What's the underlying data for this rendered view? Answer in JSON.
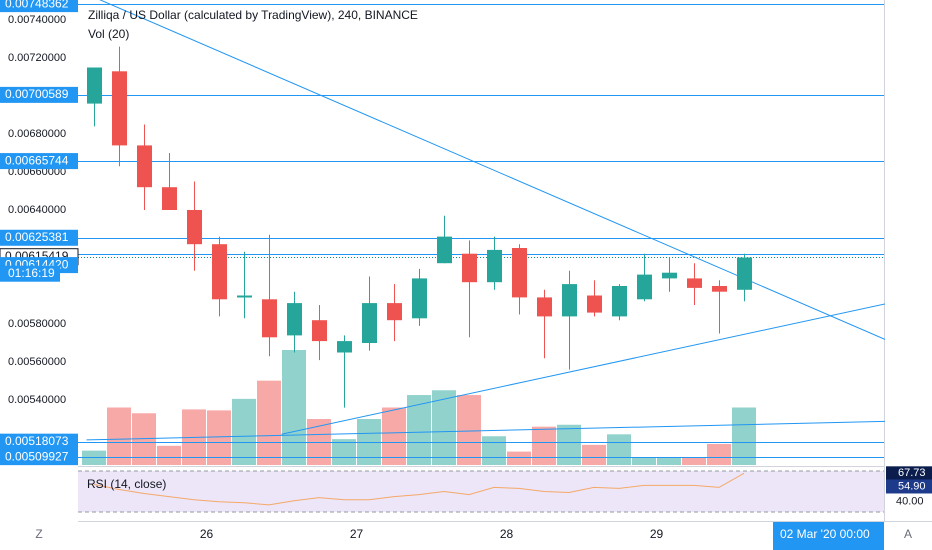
{
  "legend": {
    "title": "Zilliqa / US Dollar (calculated by TradingView), 240, BINANCE",
    "volume": "Vol (20)",
    "rsi": "RSI (14, close)"
  },
  "colors": {
    "up": "#26a69a",
    "down": "#ef5350",
    "line": "#2196f3",
    "label_bg": "#2196f3",
    "last_price": "#0b8f84",
    "rsi_line": "#f5a868",
    "rsi_band": "#ece6f8"
  },
  "price_axis": {
    "ticks": [
      "0.00740000",
      "0.00720000",
      "0.00680000",
      "0.00660000",
      "0.00640000",
      "0.00580000",
      "0.00560000",
      "0.00540000"
    ],
    "tick_values": [
      0.0074,
      0.0072,
      0.0068,
      0.0066,
      0.0064,
      0.0058,
      0.0056,
      0.0054
    ],
    "highlighted_labels": [
      {
        "text": "0.00748362",
        "value": 0.00748362
      },
      {
        "text": "0.00700589",
        "value": 0.00700589
      },
      {
        "text": "0.00665744",
        "value": 0.00665744
      },
      {
        "text": "0.00625381",
        "value": 0.00625381
      },
      {
        "text": "0.00615419",
        "value": 0.00615419
      },
      {
        "text": "0.00614420",
        "value": 0.00611
      },
      {
        "text": "0.00518073",
        "value": 0.00518073
      },
      {
        "text": "0.00509927",
        "value": 0.00509927
      }
    ],
    "countdown": "01:16:19"
  },
  "rsi_axis": {
    "labels": [
      {
        "text": "67.73",
        "value": 67.73,
        "box": true
      },
      {
        "text": "54.90",
        "value": 54.9,
        "box": true
      },
      {
        "text": "40.00",
        "value": 40,
        "box": false
      }
    ],
    "range": [
      30,
      70
    ],
    "band": [
      30,
      70
    ]
  },
  "time_axis": {
    "labels": [
      {
        "text": "26",
        "bar": 4.5
      },
      {
        "text": "27",
        "bar": 10.5
      },
      {
        "text": "28",
        "bar": 16.5
      },
      {
        "text": "29",
        "bar": 22.5
      }
    ],
    "cursor_label": "02 Mar '20   00:00",
    "z_button": "Z",
    "a_button": "A"
  },
  "chart_data": {
    "type": "candlestick",
    "price_range": [
      0.0051,
      0.0075
    ],
    "bars": [
      {
        "o": 0.00696,
        "h": 0.00715,
        "l": 0.00684,
        "c": 0.00715,
        "v": 0.15
      },
      {
        "o": 0.00713,
        "h": 0.00726,
        "l": 0.00663,
        "c": 0.00674,
        "v": 0.6
      },
      {
        "o": 0.00674,
        "h": 0.00685,
        "l": 0.0064,
        "c": 0.00652,
        "v": 0.54
      },
      {
        "o": 0.00652,
        "h": 0.0067,
        "l": 0.0064,
        "c": 0.0064,
        "v": 0.2
      },
      {
        "o": 0.0064,
        "h": 0.00655,
        "l": 0.00608,
        "c": 0.00622,
        "v": 0.58
      },
      {
        "o": 0.00622,
        "h": 0.00626,
        "l": 0.00584,
        "c": 0.00593,
        "v": 0.57
      },
      {
        "o": 0.00594,
        "h": 0.00618,
        "l": 0.00583,
        "c": 0.00595,
        "v": 0.69
      },
      {
        "o": 0.00593,
        "h": 0.00627,
        "l": 0.00563,
        "c": 0.00573,
        "v": 0.88
      },
      {
        "o": 0.00574,
        "h": 0.00597,
        "l": 0.00565,
        "c": 0.00591,
        "v": 1.2
      },
      {
        "o": 0.00582,
        "h": 0.0059,
        "l": 0.00561,
        "c": 0.00571,
        "v": 0.48
      },
      {
        "o": 0.00565,
        "h": 0.00574,
        "l": 0.00536,
        "c": 0.00571,
        "v": 0.27
      },
      {
        "o": 0.0057,
        "h": 0.00605,
        "l": 0.00566,
        "c": 0.00591,
        "v": 0.48
      },
      {
        "o": 0.00591,
        "h": 0.00601,
        "l": 0.00571,
        "c": 0.00582,
        "v": 0.6
      },
      {
        "o": 0.00583,
        "h": 0.00609,
        "l": 0.00579,
        "c": 0.00604,
        "v": 0.73
      },
      {
        "o": 0.00612,
        "h": 0.00637,
        "l": 0.00612,
        "c": 0.00626,
        "v": 0.78
      },
      {
        "o": 0.00617,
        "h": 0.00624,
        "l": 0.00573,
        "c": 0.00602,
        "v": 0.73
      },
      {
        "o": 0.00602,
        "h": 0.00626,
        "l": 0.00598,
        "c": 0.00619,
        "v": 0.3
      },
      {
        "o": 0.0062,
        "h": 0.00622,
        "l": 0.00585,
        "c": 0.00594,
        "v": 0.14
      },
      {
        "o": 0.00594,
        "h": 0.00598,
        "l": 0.00562,
        "c": 0.00584,
        "v": 0.4
      },
      {
        "o": 0.00584,
        "h": 0.00608,
        "l": 0.00556,
        "c": 0.00601,
        "v": 0.42
      },
      {
        "o": 0.00595,
        "h": 0.00603,
        "l": 0.00584,
        "c": 0.00586,
        "v": 0.21
      },
      {
        "o": 0.00584,
        "h": 0.00601,
        "l": 0.00582,
        "c": 0.006,
        "v": 0.32
      },
      {
        "o": 0.00593,
        "h": 0.00617,
        "l": 0.00592,
        "c": 0.00606,
        "v": 0.08
      },
      {
        "o": 0.00604,
        "h": 0.00615,
        "l": 0.00597,
        "c": 0.00607,
        "v": 0.08
      },
      {
        "o": 0.00604,
        "h": 0.00612,
        "l": 0.0059,
        "c": 0.00599,
        "v": 0.08
      },
      {
        "o": 0.006,
        "h": 0.00603,
        "l": 0.00575,
        "c": 0.00597,
        "v": 0.22
      },
      {
        "o": 0.00598,
        "h": 0.00617,
        "l": 0.00592,
        "c": 0.00615,
        "v": 0.6
      }
    ],
    "horizontal_lines": [
      0.00748362,
      0.00700589,
      0.00665744,
      0.00625381,
      0.00518073,
      0.00509927
    ],
    "last_price_line": 0.00615419,
    "trend_lines": [
      {
        "from": {
          "bar": 0,
          "price": 0.00752
        },
        "to": {
          "bar": 32.5,
          "price": 0.00567
        }
      },
      {
        "from": {
          "bar": 7.5,
          "price": 0.00522
        },
        "to": {
          "bar": 32.5,
          "price": 0.00593
        }
      },
      {
        "from": {
          "bar": -0.3,
          "price": 0.00519
        },
        "to": {
          "bar": 32.5,
          "price": 0.00529
        }
      }
    ],
    "rsi_values": [
      57,
      52,
      48,
      45,
      42,
      40,
      39,
      37,
      41,
      44,
      42,
      42,
      45,
      47,
      50,
      47,
      54,
      53,
      50,
      49,
      54,
      53,
      56,
      56,
      56,
      54,
      67.7
    ]
  }
}
